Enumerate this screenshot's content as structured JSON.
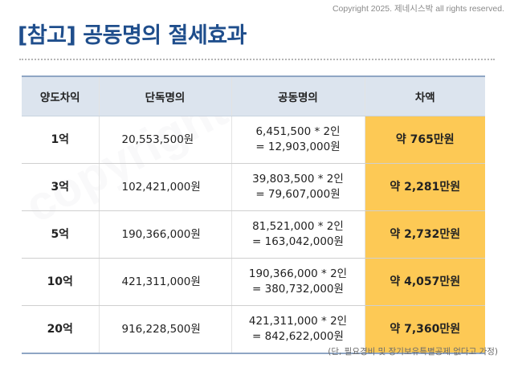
{
  "copyright": "Copyright 2025. 제네시스박 all rights reserved.",
  "title": "[참고] 공동명의 절세효과",
  "table": {
    "headers": [
      "양도차익",
      "단독명의",
      "공동명의",
      "차액"
    ],
    "rows": [
      {
        "gain": "1억",
        "single": "20,553,500원",
        "joint_line1": "6,451,500 * 2인",
        "joint_line2": "= 12,903,000원",
        "diff": "약 765만원"
      },
      {
        "gain": "3억",
        "single": "102,421,000원",
        "joint_line1": "39,803,500 * 2인",
        "joint_line2": "= 79,607,000원",
        "diff": "약 2,281만원"
      },
      {
        "gain": "5억",
        "single": "190,366,000원",
        "joint_line1": "81,521,000 * 2인",
        "joint_line2": "= 163,042,000원",
        "diff": "약 2,732만원"
      },
      {
        "gain": "10억",
        "single": "421,311,000원",
        "joint_line1": "190,366,000 * 2인",
        "joint_line2": "= 380,732,000원",
        "diff": "약 4,057만원"
      },
      {
        "gain": "20억",
        "single": "916,228,500원",
        "joint_line1": "421,311,000 * 2인",
        "joint_line2": "= 842,622,000원",
        "diff": "약 7,360만원"
      }
    ]
  },
  "footnote": "(단, 필요경비 및 장기보유특별공제 없다고 가정)",
  "colors": {
    "title": "#1f4e8c",
    "header_bg": "#dce4ee",
    "highlight": "#fdc955"
  }
}
